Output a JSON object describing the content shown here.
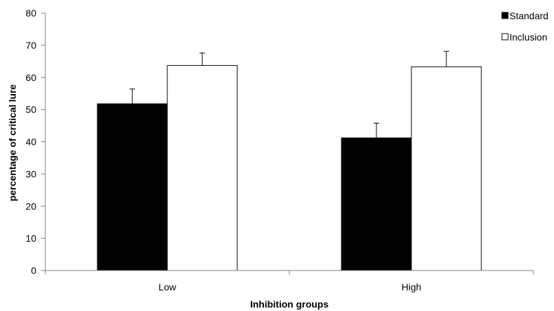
{
  "chart_data": {
    "type": "bar",
    "title": "",
    "xlabel": "Inhibition groups",
    "ylabel": "percentage of critical lure",
    "categories": [
      "Low",
      "High"
    ],
    "series": [
      {
        "name": "Standard",
        "values": [
          51.8,
          41.2
        ],
        "errors": [
          4.6,
          4.6
        ],
        "color": "#000000"
      },
      {
        "name": "Inclusion",
        "values": [
          63.7,
          63.3
        ],
        "errors": [
          3.9,
          4.8
        ],
        "color": "#ffffff"
      }
    ],
    "ylim": [
      0,
      80
    ],
    "yticks": [
      0,
      10,
      20,
      30,
      40,
      50,
      60,
      70,
      80
    ],
    "grid": false,
    "legend_position": "top-right"
  }
}
